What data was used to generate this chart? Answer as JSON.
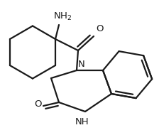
{
  "background_color": "#ffffff",
  "line_color": "#1a1a1a",
  "line_width": 1.6,
  "figsize": [
    2.24,
    1.97
  ],
  "dpi": 100,
  "xlim": [
    0,
    224
  ],
  "ylim": [
    0,
    197
  ]
}
